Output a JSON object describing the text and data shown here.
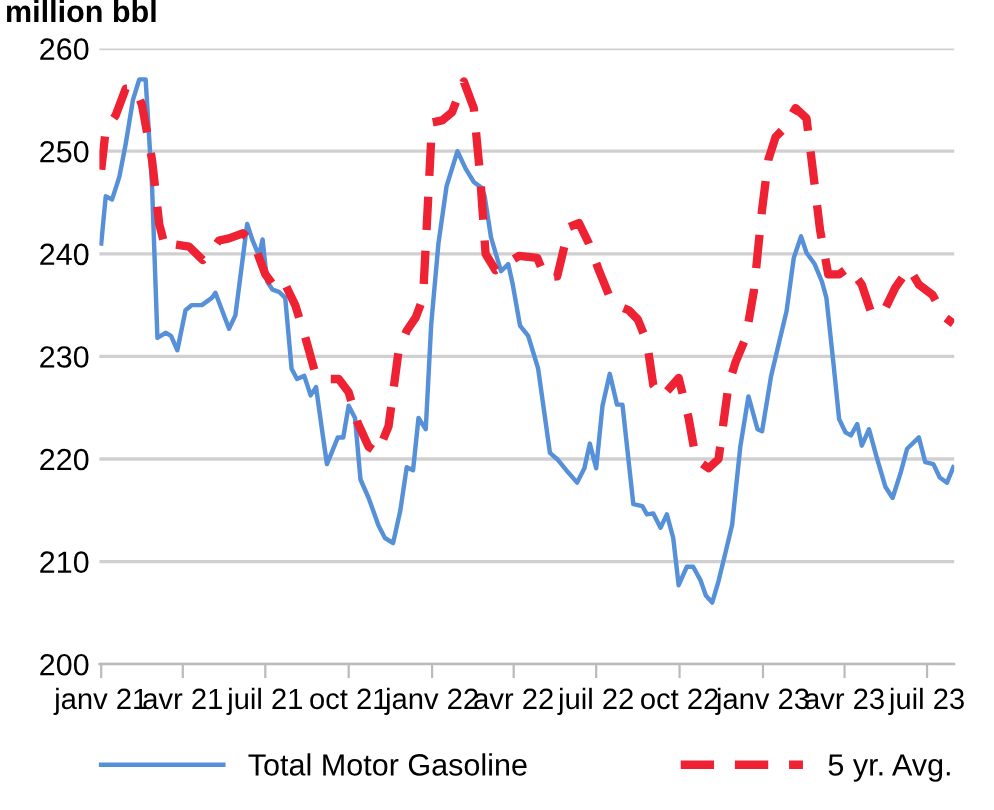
{
  "chart_data": {
    "type": "line",
    "ylabel": "million bbl",
    "x": [
      "2021-01-01",
      "2021-01-06",
      "2021-01-13",
      "2021-01-21",
      "2021-01-28",
      "2021-02-05",
      "2021-02-12",
      "2021-02-19",
      "2021-02-26",
      "2021-03-04",
      "2021-03-13",
      "2021-03-19",
      "2021-03-26",
      "2021-04-04",
      "2021-04-11",
      "2021-04-22",
      "2021-05-03",
      "2021-05-07",
      "2021-05-22",
      "2021-05-29",
      "2021-06-11",
      "2021-06-17",
      "2021-06-24",
      "2021-06-28",
      "2021-07-03",
      "2021-07-09",
      "2021-07-16",
      "2021-07-23",
      "2021-07-30",
      "2021-08-05",
      "2021-08-13",
      "2021-08-20",
      "2021-08-26",
      "2021-09-01",
      "2021-09-07",
      "2021-09-13",
      "2021-09-19",
      "2021-09-25",
      "2021-10-01",
      "2021-10-08",
      "2021-10-14",
      "2021-10-23",
      "2021-11-03",
      "2021-11-10",
      "2021-11-19",
      "2021-11-27",
      "2021-12-04",
      "2021-12-11",
      "2021-12-17",
      "2021-12-25",
      "2021-12-31",
      "2022-01-08",
      "2022-01-17",
      "2022-01-29",
      "2022-02-07",
      "2022-02-16",
      "2022-02-25",
      "2022-02-28",
      "2022-03-07",
      "2022-03-18",
      "2022-03-26",
      "2022-03-31",
      "2022-04-08",
      "2022-04-17",
      "2022-04-28",
      "2022-05-11",
      "2022-05-20",
      "2022-05-31",
      "2022-06-10",
      "2022-06-18",
      "2022-06-24",
      "2022-07-01",
      "2022-07-08",
      "2022-07-16",
      "2022-07-24",
      "2022-07-30",
      "2022-08-11",
      "2022-08-21",
      "2022-08-26",
      "2022-09-02",
      "2022-09-10",
      "2022-09-17",
      "2022-09-24",
      "2022-09-30",
      "2022-10-09",
      "2022-10-16",
      "2022-10-24",
      "2022-10-30",
      "2022-11-06",
      "2022-11-13",
      "2022-11-21",
      "2022-11-28",
      "2022-12-07",
      "2022-12-16",
      "2022-12-26",
      "2022-12-31",
      "2023-01-10",
      "2023-01-17",
      "2023-01-27",
      "2023-02-04",
      "2023-02-12",
      "2023-02-18",
      "2023-02-27",
      "2023-03-07",
      "2023-03-12",
      "2023-03-20",
      "2023-03-26",
      "2023-04-02",
      "2023-04-08",
      "2023-04-15",
      "2023-04-20",
      "2023-04-28",
      "2023-05-06",
      "2023-05-16",
      "2023-05-24",
      "2023-06-02",
      "2023-06-09",
      "2023-06-22",
      "2023-06-29",
      "2023-07-08",
      "2023-07-15",
      "2023-07-23",
      "2023-07-30"
    ],
    "series": [
      {
        "name": "Total Motor Gasoline",
        "color": "#5590d8",
        "line_style": "solid",
        "values": [
          241,
          245.6,
          245.3,
          247.5,
          250.7,
          255,
          257,
          257,
          246.8,
          231.8,
          232.3,
          232,
          230.6,
          234.5,
          235,
          235,
          235.7,
          236.2,
          232.7,
          234,
          242.9,
          241.3,
          239.8,
          241.4,
          237.3,
          236.5,
          236.3,
          235.7,
          228.8,
          227.8,
          228.1,
          226.2,
          227,
          223.2,
          219.5,
          220.8,
          222.1,
          222.1,
          225.2,
          224,
          218,
          216.2,
          213.5,
          212.3,
          211.8,
          215,
          219.2,
          218.9,
          224,
          222.9,
          233.1,
          241,
          246.6,
          250,
          248.3,
          247,
          246.4,
          245.6,
          241.6,
          238.3,
          239,
          237,
          233,
          232,
          228.8,
          220.6,
          219.9,
          218.7,
          217.7,
          219.1,
          221.5,
          219.1,
          225.2,
          228.3,
          225.3,
          225.3,
          215.6,
          215.4,
          214.6,
          214.7,
          213.3,
          214.6,
          212.3,
          207.7,
          209.5,
          209.5,
          208.2,
          206.7,
          206,
          208.1,
          211,
          213.6,
          221.2,
          226.1,
          222.9,
          222.7,
          228.1,
          230.7,
          234.4,
          239.6,
          241.7,
          240.1,
          239,
          237.3,
          235.7,
          229.1,
          223.9,
          222.6,
          222.3,
          223.4,
          221.3,
          222.9,
          220.3,
          217.3,
          216.2,
          218.7,
          221,
          222.1,
          219.7,
          219.5,
          218.2,
          217.7,
          219.2
        ]
      },
      {
        "name": "5 yr. Avg.",
        "color": "#ee2233",
        "line_style": "dashed",
        "x": [
          "2021-01-01",
          "2021-01-06",
          "2021-01-17",
          "2021-01-28",
          "2021-02-08",
          "2021-02-15",
          "2021-02-26",
          "2021-03-06",
          "2021-03-13",
          "2021-03-24",
          "2021-04-08",
          "2021-04-23",
          "2021-04-30",
          "2021-05-11",
          "2021-05-22",
          "2021-06-06",
          "2021-06-18",
          "2021-07-01",
          "2021-07-12",
          "2021-07-22",
          "2021-08-03",
          "2021-08-14",
          "2021-08-25",
          "2021-09-05",
          "2021-09-20",
          "2021-10-01",
          "2021-10-11",
          "2021-10-23",
          "2021-11-02",
          "2021-11-14",
          "2021-11-25",
          "2021-12-04",
          "2021-12-14",
          "2021-12-22",
          "2022-01-01",
          "2022-01-12",
          "2022-01-23",
          "2022-02-05",
          "2022-02-16",
          "2022-02-23",
          "2022-03-01",
          "2022-03-12",
          "2022-03-23",
          "2022-04-07",
          "2022-04-27",
          "2022-05-06",
          "2022-05-19",
          "2022-06-01",
          "2022-06-12",
          "2022-06-23",
          "2022-07-04",
          "2022-07-15",
          "2022-07-26",
          "2022-08-06",
          "2022-08-16",
          "2022-08-26",
          "2022-09-02",
          "2022-09-12",
          "2022-09-30",
          "2022-10-11",
          "2022-10-19",
          "2022-11-02",
          "2022-11-13",
          "2022-11-24",
          "2022-12-02",
          "2022-12-13",
          "2022-12-22",
          "2022-12-31",
          "2023-01-07",
          "2023-01-15",
          "2023-01-24",
          "2023-02-06",
          "2023-02-18",
          "2023-02-24",
          "2023-03-05",
          "2023-03-14",
          "2023-03-26",
          "2023-04-06",
          "2023-04-20",
          "2023-05-01",
          "2023-05-16",
          "2023-05-27",
          "2023-06-11",
          "2023-06-22",
          "2023-07-07",
          "2023-07-21",
          "2023-07-30"
        ],
        "values": [
          248.2,
          252.1,
          253.5,
          256.1,
          256.1,
          254.5,
          249.2,
          242.9,
          240.5,
          240.9,
          240.7,
          239.4,
          240,
          241.3,
          241.5,
          242,
          241.1,
          238,
          236.7,
          237.2,
          235,
          231.9,
          228.4,
          227.8,
          227.8,
          226.5,
          223.5,
          221.2,
          220.6,
          223.2,
          230.5,
          232.5,
          233.8,
          235.7,
          252.8,
          253,
          253.8,
          256.8,
          254.2,
          247.6,
          240,
          238.4,
          239,
          239.8,
          239.6,
          237.7,
          237.8,
          242.6,
          243,
          241,
          238.4,
          236,
          234.9,
          234.5,
          233.6,
          231.4,
          227.2,
          226.1,
          227.9,
          224,
          220,
          219.1,
          220,
          227.2,
          229.5,
          231.8,
          236.4,
          244.3,
          249.2,
          251.4,
          252.2,
          254.2,
          253.2,
          248.9,
          242.3,
          238,
          238,
          238.7,
          237,
          234.1,
          234.7,
          236.7,
          238.6,
          237,
          236,
          233.8,
          233.2
        ]
      }
    ],
    "xlim": [
      "2020-12-30",
      "2023-07-31"
    ],
    "xticks": [
      {
        "value": "2021-01-01",
        "label": "janv 21"
      },
      {
        "value": "2021-04-01",
        "label": "avr 21"
      },
      {
        "value": "2021-07-01",
        "label": "juil 21"
      },
      {
        "value": "2021-10-01",
        "label": "oct 21"
      },
      {
        "value": "2022-01-01",
        "label": "janv 22"
      },
      {
        "value": "2022-04-01",
        "label": "avr 22"
      },
      {
        "value": "2022-07-01",
        "label": "juil 22"
      },
      {
        "value": "2022-10-01",
        "label": "oct 22"
      },
      {
        "value": "2023-01-01",
        "label": "janv 23"
      },
      {
        "value": "2023-04-01",
        "label": "avr 23"
      },
      {
        "value": "2023-07-01",
        "label": "juil 23"
      }
    ],
    "ylim": [
      200,
      260
    ],
    "yticks": [
      200,
      210,
      220,
      230,
      240,
      250,
      260
    ],
    "grid": "y",
    "legend": "bottom",
    "marker": "none"
  }
}
